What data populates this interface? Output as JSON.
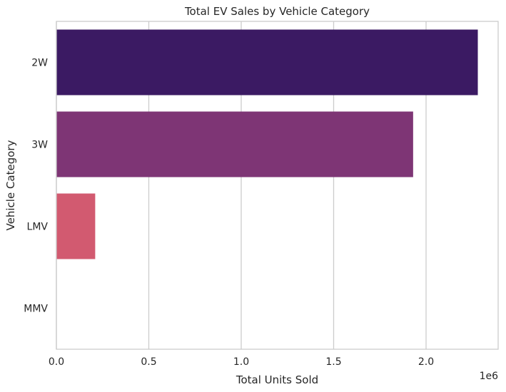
{
  "chart_data": {
    "type": "bar",
    "orientation": "horizontal",
    "title": "Total EV Sales by Vehicle Category",
    "xlabel": "Total Units Sold",
    "ylabel": "Vehicle Category",
    "x_scale_label": "1e6",
    "x_tick_values": [
      0,
      500000,
      1000000,
      1500000,
      2000000
    ],
    "x_tick_labels": [
      "0.0",
      "0.5",
      "1.0",
      "1.5",
      "2.0"
    ],
    "xlim": [
      0,
      2390000
    ],
    "grid": true,
    "categories": [
      "2W",
      "3W",
      "LMV",
      "MMV"
    ],
    "values": [
      2280000,
      1930000,
      210000,
      0
    ],
    "colors": [
      "#3b1a63",
      "#7e3575",
      "#d25a70",
      "#f7a880"
    ]
  }
}
